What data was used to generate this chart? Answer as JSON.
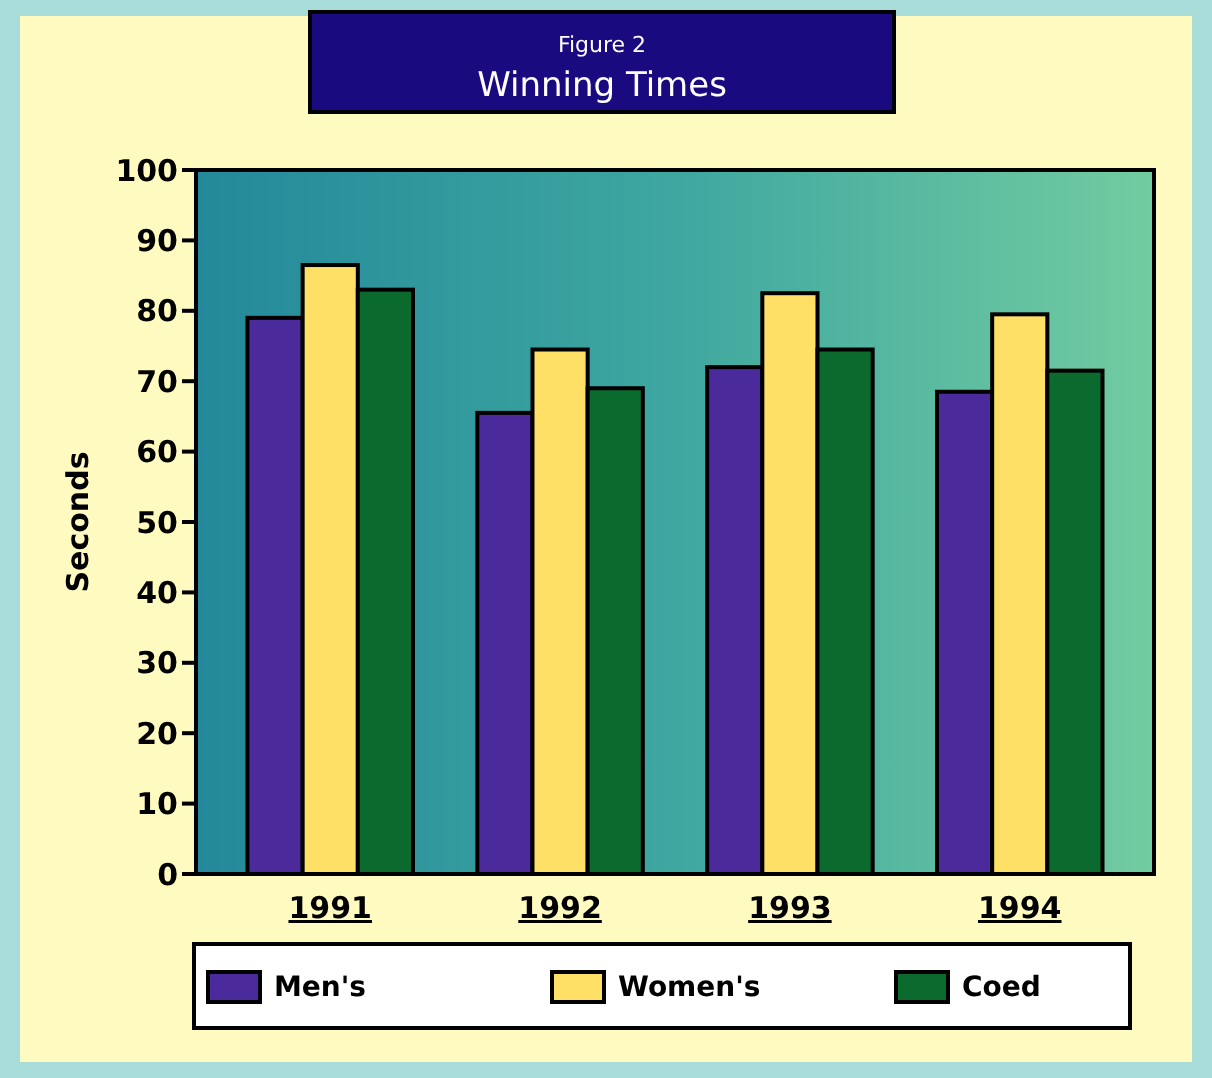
{
  "chart_data": {
    "type": "bar",
    "title": "Figure 2",
    "subtitle": "Winning Times",
    "ylabel": "Seconds",
    "categories": [
      "1991",
      "1992",
      "1993",
      "1994"
    ],
    "series": [
      {
        "name": "Men's",
        "color": "#4b2a9c",
        "values": [
          79,
          65.5,
          72,
          68.5
        ]
      },
      {
        "name": "Women's",
        "color": "#ffe066",
        "values": [
          86.5,
          74.5,
          82.5,
          79.5
        ]
      },
      {
        "name": "Coed",
        "color": "#0b6b2e",
        "values": [
          83,
          69,
          74.5,
          71.5
        ]
      }
    ],
    "ylim": [
      0,
      100
    ],
    "yticks": [
      0,
      10,
      20,
      30,
      40,
      50,
      60,
      70,
      80,
      90,
      100
    ],
    "grid": false,
    "legend": "bottom"
  }
}
